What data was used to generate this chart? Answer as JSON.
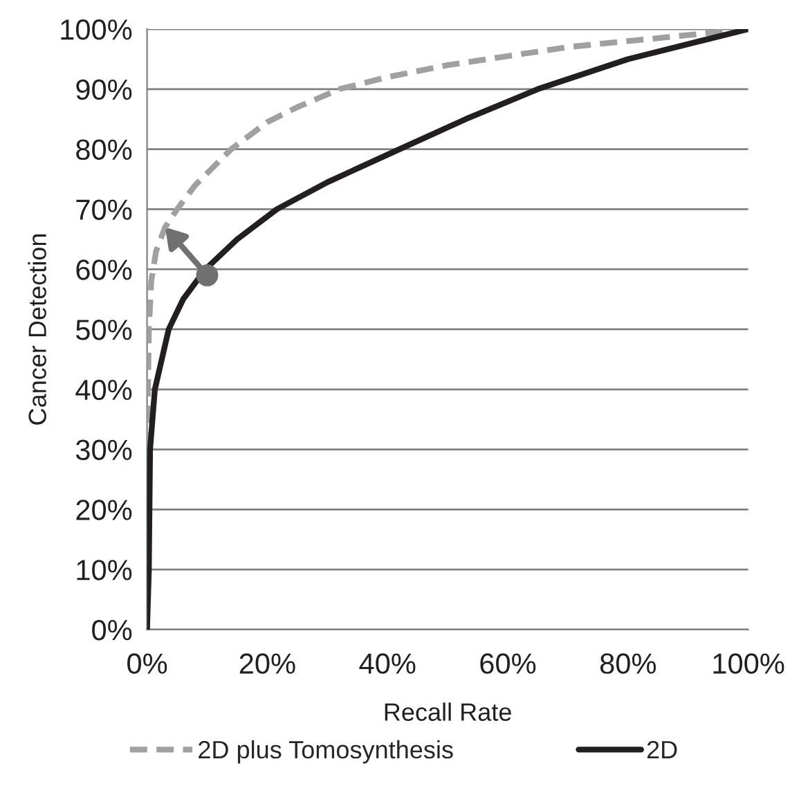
{
  "chart_data": {
    "type": "line",
    "xlabel": "Recall Rate",
    "ylabel": "Cancer Detection",
    "xlim": [
      0,
      100
    ],
    "ylim": [
      0,
      100
    ],
    "xticks": [
      {
        "value": 0,
        "label": "0%"
      },
      {
        "value": 20,
        "label": "20%"
      },
      {
        "value": 40,
        "label": "40%"
      },
      {
        "value": 60,
        "label": "60%"
      },
      {
        "value": 80,
        "label": "80%"
      },
      {
        "value": 100,
        "label": "100%"
      }
    ],
    "yticks": [
      {
        "value": 0,
        "label": "0%"
      },
      {
        "value": 10,
        "label": "10%"
      },
      {
        "value": 20,
        "label": "20%"
      },
      {
        "value": 30,
        "label": "30%"
      },
      {
        "value": 40,
        "label": "40%"
      },
      {
        "value": 50,
        "label": "50%"
      },
      {
        "value": 60,
        "label": "60%"
      },
      {
        "value": 70,
        "label": "70%"
      },
      {
        "value": 80,
        "label": "80%"
      },
      {
        "value": 90,
        "label": "90%"
      },
      {
        "value": 100,
        "label": "100%"
      }
    ],
    "grid": "y",
    "legend": "bottom",
    "marker": "none",
    "series": [
      {
        "name": "2D plus Tomosynthesis",
        "color": "#a0a0a2",
        "line_style": "dashed",
        "x": [
          0,
          0.3,
          0.7,
          1.5,
          3,
          5,
          8,
          10,
          14,
          20,
          25,
          32,
          40,
          50,
          60,
          70,
          80,
          90,
          100
        ],
        "values": [
          30,
          50,
          58,
          63,
          67,
          70,
          74,
          76,
          80,
          84.5,
          87,
          90,
          92,
          94,
          95.5,
          97,
          98,
          99,
          100
        ]
      },
      {
        "name": "2D",
        "color": "#231f20",
        "line_style": "solid",
        "x": [
          0,
          0.3,
          0.4,
          0.5,
          1.3,
          3.6,
          6,
          9.7,
          15,
          21.6,
          30,
          42,
          53,
          65,
          80,
          100
        ],
        "values": [
          0,
          10,
          20,
          30,
          40,
          50,
          55,
          60,
          65,
          70,
          74.5,
          80,
          85,
          90,
          95,
          100
        ]
      },
      {
        "type": "scatter",
        "marker": "circle",
        "color": "#707070",
        "x": [
          10
        ],
        "values": [
          59
        ]
      }
    ]
  }
}
